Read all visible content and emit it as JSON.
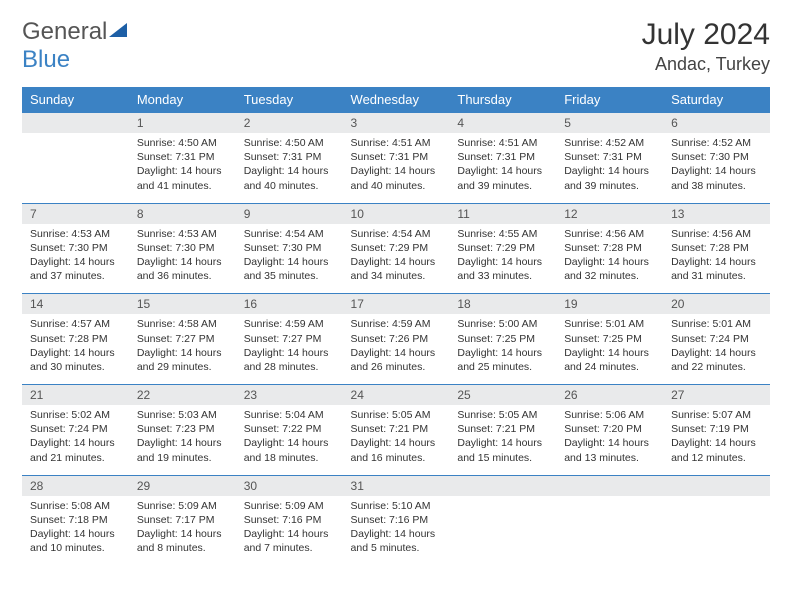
{
  "brand": {
    "part1": "General",
    "part2": "Blue"
  },
  "title": "July 2024",
  "location": "Andac, Turkey",
  "colors": {
    "header_bg": "#3b82c4",
    "daynum_bg": "#e9eaeb",
    "border": "#3b82c4",
    "text": "#333333"
  },
  "weekdays": [
    "Sunday",
    "Monday",
    "Tuesday",
    "Wednesday",
    "Thursday",
    "Friday",
    "Saturday"
  ],
  "weeks": [
    {
      "nums": [
        "",
        "1",
        "2",
        "3",
        "4",
        "5",
        "6"
      ],
      "cells": [
        {},
        {
          "sr": "Sunrise: 4:50 AM",
          "ss": "Sunset: 7:31 PM",
          "d1": "Daylight: 14 hours",
          "d2": "and 41 minutes."
        },
        {
          "sr": "Sunrise: 4:50 AM",
          "ss": "Sunset: 7:31 PM",
          "d1": "Daylight: 14 hours",
          "d2": "and 40 minutes."
        },
        {
          "sr": "Sunrise: 4:51 AM",
          "ss": "Sunset: 7:31 PM",
          "d1": "Daylight: 14 hours",
          "d2": "and 40 minutes."
        },
        {
          "sr": "Sunrise: 4:51 AM",
          "ss": "Sunset: 7:31 PM",
          "d1": "Daylight: 14 hours",
          "d2": "and 39 minutes."
        },
        {
          "sr": "Sunrise: 4:52 AM",
          "ss": "Sunset: 7:31 PM",
          "d1": "Daylight: 14 hours",
          "d2": "and 39 minutes."
        },
        {
          "sr": "Sunrise: 4:52 AM",
          "ss": "Sunset: 7:30 PM",
          "d1": "Daylight: 14 hours",
          "d2": "and 38 minutes."
        }
      ]
    },
    {
      "nums": [
        "7",
        "8",
        "9",
        "10",
        "11",
        "12",
        "13"
      ],
      "cells": [
        {
          "sr": "Sunrise: 4:53 AM",
          "ss": "Sunset: 7:30 PM",
          "d1": "Daylight: 14 hours",
          "d2": "and 37 minutes."
        },
        {
          "sr": "Sunrise: 4:53 AM",
          "ss": "Sunset: 7:30 PM",
          "d1": "Daylight: 14 hours",
          "d2": "and 36 minutes."
        },
        {
          "sr": "Sunrise: 4:54 AM",
          "ss": "Sunset: 7:30 PM",
          "d1": "Daylight: 14 hours",
          "d2": "and 35 minutes."
        },
        {
          "sr": "Sunrise: 4:54 AM",
          "ss": "Sunset: 7:29 PM",
          "d1": "Daylight: 14 hours",
          "d2": "and 34 minutes."
        },
        {
          "sr": "Sunrise: 4:55 AM",
          "ss": "Sunset: 7:29 PM",
          "d1": "Daylight: 14 hours",
          "d2": "and 33 minutes."
        },
        {
          "sr": "Sunrise: 4:56 AM",
          "ss": "Sunset: 7:28 PM",
          "d1": "Daylight: 14 hours",
          "d2": "and 32 minutes."
        },
        {
          "sr": "Sunrise: 4:56 AM",
          "ss": "Sunset: 7:28 PM",
          "d1": "Daylight: 14 hours",
          "d2": "and 31 minutes."
        }
      ]
    },
    {
      "nums": [
        "14",
        "15",
        "16",
        "17",
        "18",
        "19",
        "20"
      ],
      "cells": [
        {
          "sr": "Sunrise: 4:57 AM",
          "ss": "Sunset: 7:28 PM",
          "d1": "Daylight: 14 hours",
          "d2": "and 30 minutes."
        },
        {
          "sr": "Sunrise: 4:58 AM",
          "ss": "Sunset: 7:27 PM",
          "d1": "Daylight: 14 hours",
          "d2": "and 29 minutes."
        },
        {
          "sr": "Sunrise: 4:59 AM",
          "ss": "Sunset: 7:27 PM",
          "d1": "Daylight: 14 hours",
          "d2": "and 28 minutes."
        },
        {
          "sr": "Sunrise: 4:59 AM",
          "ss": "Sunset: 7:26 PM",
          "d1": "Daylight: 14 hours",
          "d2": "and 26 minutes."
        },
        {
          "sr": "Sunrise: 5:00 AM",
          "ss": "Sunset: 7:25 PM",
          "d1": "Daylight: 14 hours",
          "d2": "and 25 minutes."
        },
        {
          "sr": "Sunrise: 5:01 AM",
          "ss": "Sunset: 7:25 PM",
          "d1": "Daylight: 14 hours",
          "d2": "and 24 minutes."
        },
        {
          "sr": "Sunrise: 5:01 AM",
          "ss": "Sunset: 7:24 PM",
          "d1": "Daylight: 14 hours",
          "d2": "and 22 minutes."
        }
      ]
    },
    {
      "nums": [
        "21",
        "22",
        "23",
        "24",
        "25",
        "26",
        "27"
      ],
      "cells": [
        {
          "sr": "Sunrise: 5:02 AM",
          "ss": "Sunset: 7:24 PM",
          "d1": "Daylight: 14 hours",
          "d2": "and 21 minutes."
        },
        {
          "sr": "Sunrise: 5:03 AM",
          "ss": "Sunset: 7:23 PM",
          "d1": "Daylight: 14 hours",
          "d2": "and 19 minutes."
        },
        {
          "sr": "Sunrise: 5:04 AM",
          "ss": "Sunset: 7:22 PM",
          "d1": "Daylight: 14 hours",
          "d2": "and 18 minutes."
        },
        {
          "sr": "Sunrise: 5:05 AM",
          "ss": "Sunset: 7:21 PM",
          "d1": "Daylight: 14 hours",
          "d2": "and 16 minutes."
        },
        {
          "sr": "Sunrise: 5:05 AM",
          "ss": "Sunset: 7:21 PM",
          "d1": "Daylight: 14 hours",
          "d2": "and 15 minutes."
        },
        {
          "sr": "Sunrise: 5:06 AM",
          "ss": "Sunset: 7:20 PM",
          "d1": "Daylight: 14 hours",
          "d2": "and 13 minutes."
        },
        {
          "sr": "Sunrise: 5:07 AM",
          "ss": "Sunset: 7:19 PM",
          "d1": "Daylight: 14 hours",
          "d2": "and 12 minutes."
        }
      ]
    },
    {
      "nums": [
        "28",
        "29",
        "30",
        "31",
        "",
        "",
        ""
      ],
      "cells": [
        {
          "sr": "Sunrise: 5:08 AM",
          "ss": "Sunset: 7:18 PM",
          "d1": "Daylight: 14 hours",
          "d2": "and 10 minutes."
        },
        {
          "sr": "Sunrise: 5:09 AM",
          "ss": "Sunset: 7:17 PM",
          "d1": "Daylight: 14 hours",
          "d2": "and 8 minutes."
        },
        {
          "sr": "Sunrise: 5:09 AM",
          "ss": "Sunset: 7:16 PM",
          "d1": "Daylight: 14 hours",
          "d2": "and 7 minutes."
        },
        {
          "sr": "Sunrise: 5:10 AM",
          "ss": "Sunset: 7:16 PM",
          "d1": "Daylight: 14 hours",
          "d2": "and 5 minutes."
        },
        {},
        {},
        {}
      ]
    }
  ]
}
